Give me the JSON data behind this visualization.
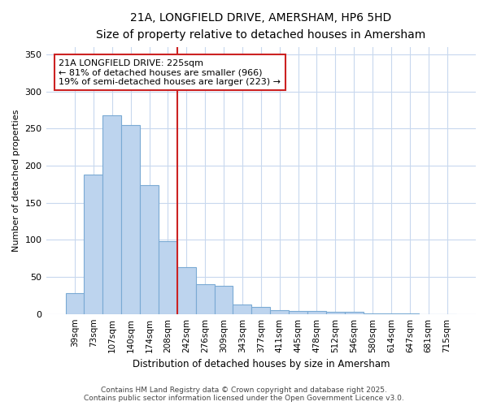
{
  "title": "21A, LONGFIELD DRIVE, AMERSHAM, HP6 5HD",
  "subtitle": "Size of property relative to detached houses in Amersham",
  "xlabel": "Distribution of detached houses by size in Amersham",
  "ylabel": "Number of detached properties",
  "categories": [
    "39sqm",
    "73sqm",
    "107sqm",
    "140sqm",
    "174sqm",
    "208sqm",
    "242sqm",
    "276sqm",
    "309sqm",
    "343sqm",
    "377sqm",
    "411sqm",
    "445sqm",
    "478sqm",
    "512sqm",
    "546sqm",
    "580sqm",
    "614sqm",
    "647sqm",
    "681sqm",
    "715sqm"
  ],
  "values": [
    28,
    188,
    268,
    255,
    174,
    98,
    63,
    40,
    38,
    13,
    9,
    5,
    4,
    4,
    3,
    3,
    1,
    1,
    1,
    0,
    0
  ],
  "bar_color": "#bdd4ee",
  "bar_edge_color": "#7aaad4",
  "annotation_box_color": "#cc2222",
  "property_line_index": 5,
  "annotation_title": "21A LONGFIELD DRIVE: 225sqm",
  "annotation_line1": "← 81% of detached houses are smaller (966)",
  "annotation_line2": "19% of semi-detached houses are larger (223) →",
  "ylim": [
    0,
    360
  ],
  "yticks": [
    0,
    50,
    100,
    150,
    200,
    250,
    300,
    350
  ],
  "bg_color": "#ffffff",
  "plot_bg_color": "#ffffff",
  "grid_color": "#c8d8ee",
  "footer1": "Contains HM Land Registry data © Crown copyright and database right 2025.",
  "footer2": "Contains public sector information licensed under the Open Government Licence v3.0."
}
